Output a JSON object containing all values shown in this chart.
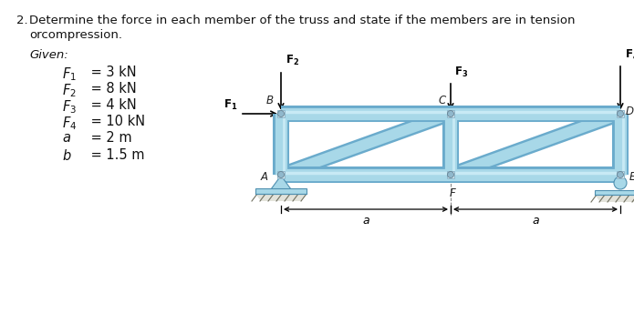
{
  "title_line1": "2.  Determine the force in each member of the truss and state if the members are in tension",
  "title_line2": "orcompression.",
  "given_label": "Given:",
  "given_items": [
    [
      "F_1",
      " = 3 kN"
    ],
    [
      "F_2",
      " = 8 kN"
    ],
    [
      "F_3",
      " = 4 kN"
    ],
    [
      "F_4",
      " = 10 kN"
    ],
    [
      "a",
      " = 2 m"
    ],
    [
      "b",
      " = 1.5 m"
    ]
  ],
  "truss_fill": "#a8d8e8",
  "truss_edge": "#6aabcc",
  "truss_dark": "#5090b0",
  "truss_light": "#c8eaf5",
  "support_fill": "#a8d8e8",
  "support_edge": "#5090b0",
  "ground_fill": "#c8c8b8",
  "bg_color": "#ffffff",
  "text_color": "#000000",
  "beam_lw": 9.5,
  "beam_edge_lw": 13.0,
  "diag_lw": 8.5,
  "diag_edge_lw": 12.0
}
